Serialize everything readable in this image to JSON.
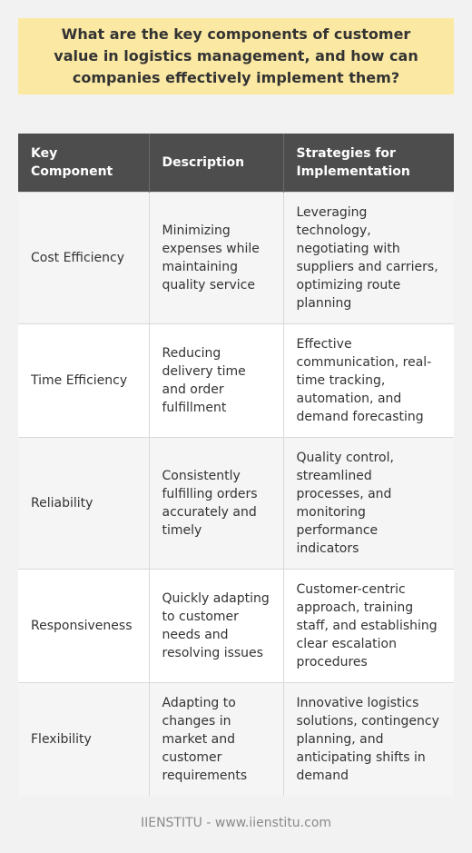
{
  "title": "What are the key components of customer value in logistics management, and how can companies effectively implement them?",
  "table": {
    "headers": [
      "Key Component",
      "Description",
      "Strategies for Implementation"
    ],
    "rows": [
      {
        "component": "Cost Efficiency",
        "description": "Minimizing expenses while maintaining quality service",
        "strategies": "Leveraging technology, negotiating with suppliers and carriers, optimizing route planning"
      },
      {
        "component": "Time Efficiency",
        "description": "Reducing delivery time and order fulfillment",
        "strategies": "Effective communication, real-time tracking, automation, and demand forecasting"
      },
      {
        "component": "Reliability",
        "description": "Consistently fulfilling orders accurately and timely",
        "strategies": "Quality control, streamlined processes, and monitoring performance indicators"
      },
      {
        "component": "Responsiveness",
        "description": "Quickly adapting to customer needs and resolving issues",
        "strategies": "Customer-centric approach, training staff, and establishing clear escalation procedures"
      },
      {
        "component": "Flexibility",
        "description": "Adapting to changes in market and customer requirements",
        "strategies": "Innovative logistics solutions, contingency planning, and anticipating shifts in demand"
      }
    ]
  },
  "footer": "IIENSTITU - www.iienstitu.com"
}
